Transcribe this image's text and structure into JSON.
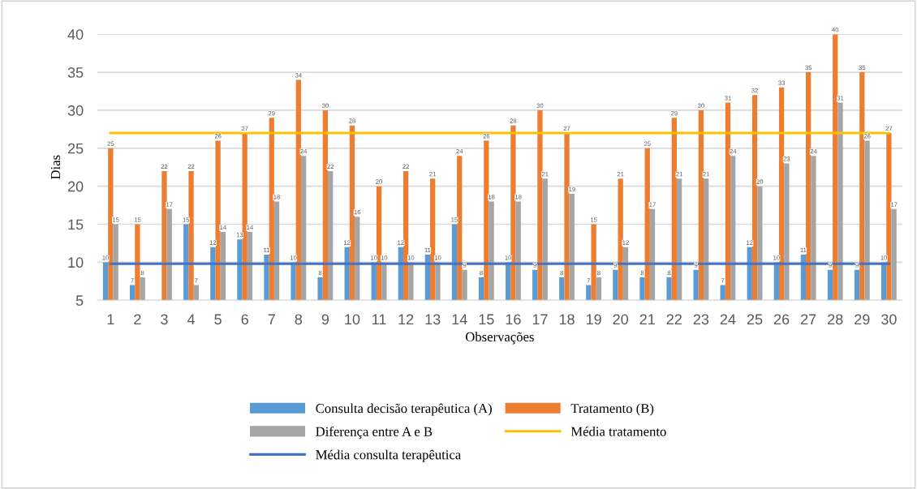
{
  "chart_data": {
    "type": "bar",
    "xlabel": "Observações",
    "ylabel": "Dias",
    "categories": [
      "1",
      "2",
      "3",
      "4",
      "5",
      "6",
      "7",
      "8",
      "9",
      "10",
      "11",
      "12",
      "13",
      "14",
      "15",
      "16",
      "17",
      "18",
      "19",
      "20",
      "21",
      "22",
      "23",
      "24",
      "25",
      "26",
      "27",
      "28",
      "29",
      "30"
    ],
    "ylim": [
      5,
      40
    ],
    "yticks": [
      5,
      10,
      15,
      20,
      25,
      30,
      35,
      40
    ],
    "grid": "y",
    "legend": "bottom",
    "series": [
      {
        "name": "Consulta decisão terapêutica (A)",
        "color": "#5b9bd5",
        "values": [
          10,
          7,
          5,
          15,
          12,
          13,
          11,
          10,
          8,
          12,
          10,
          12,
          11,
          15,
          8,
          10,
          9,
          8,
          7,
          9,
          8,
          8,
          9,
          7,
          12,
          10,
          11,
          9,
          9,
          10
        ],
        "value_labels": [
          "10",
          "7",
          null,
          "15",
          "12",
          "13",
          "11",
          "10",
          "8",
          "12",
          "10",
          "12",
          "11",
          "15",
          "8",
          "10",
          "9",
          "8",
          "7",
          "9",
          "8",
          "8",
          "9",
          "7",
          "12",
          "10",
          "11",
          "9",
          "9",
          "10"
        ]
      },
      {
        "name": "Tratamento (B)",
        "color": "#ed7d31",
        "values": [
          25,
          15,
          22,
          22,
          26,
          27,
          29,
          34,
          30,
          28,
          20,
          22,
          21,
          24,
          26,
          28,
          30,
          27,
          15,
          21,
          25,
          29,
          30,
          31,
          32,
          33,
          35,
          40,
          35,
          27
        ],
        "value_labels": [
          "25",
          "15",
          "22",
          "22",
          "26",
          "27",
          "29",
          "34",
          "30",
          "28",
          "20",
          "22",
          "21",
          "24",
          "26",
          "28",
          "30",
          "27",
          "15",
          "21",
          "25",
          "29",
          "30",
          "31",
          "32",
          "33",
          "35",
          "40",
          "35",
          "27"
        ]
      },
      {
        "name": "Diferença entre A e B",
        "color": "#a5a5a5",
        "values": [
          15,
          8,
          17,
          7,
          14,
          14,
          18,
          24,
          22,
          16,
          10,
          10,
          10,
          9,
          18,
          18,
          21,
          19,
          8,
          12,
          17,
          21,
          21,
          24,
          20,
          23,
          24,
          31,
          26,
          17
        ],
        "value_labels": [
          "15",
          "8",
          "17",
          "7",
          "14",
          "14",
          "18",
          "24",
          "22",
          "16",
          "10",
          "10",
          "10",
          "9",
          "18",
          "18",
          "21",
          "19",
          "8",
          "12",
          "17",
          "21",
          "21",
          "24",
          "20",
          "23",
          "24",
          "31",
          "26",
          "17"
        ]
      },
      {
        "name": "Média tratamento",
        "type": "line",
        "color": "#ffc000",
        "values": [
          27,
          27,
          27,
          27,
          27,
          27,
          27,
          27,
          27,
          27,
          27,
          27,
          27,
          27,
          27,
          27,
          27,
          27,
          27,
          27,
          27,
          27,
          27,
          27,
          27,
          27,
          27,
          27,
          27,
          27
        ]
      },
      {
        "name": "Média consulta terapêutica",
        "type": "line",
        "color": "#4472c4",
        "values": [
          9.8,
          9.8,
          9.8,
          9.8,
          9.8,
          9.8,
          9.8,
          9.8,
          9.8,
          9.8,
          9.8,
          9.8,
          9.8,
          9.8,
          9.8,
          9.8,
          9.8,
          9.8,
          9.8,
          9.8,
          9.8,
          9.8,
          9.8,
          9.8,
          9.8,
          9.8,
          9.8,
          9.8,
          9.8,
          9.8
        ]
      }
    ]
  }
}
